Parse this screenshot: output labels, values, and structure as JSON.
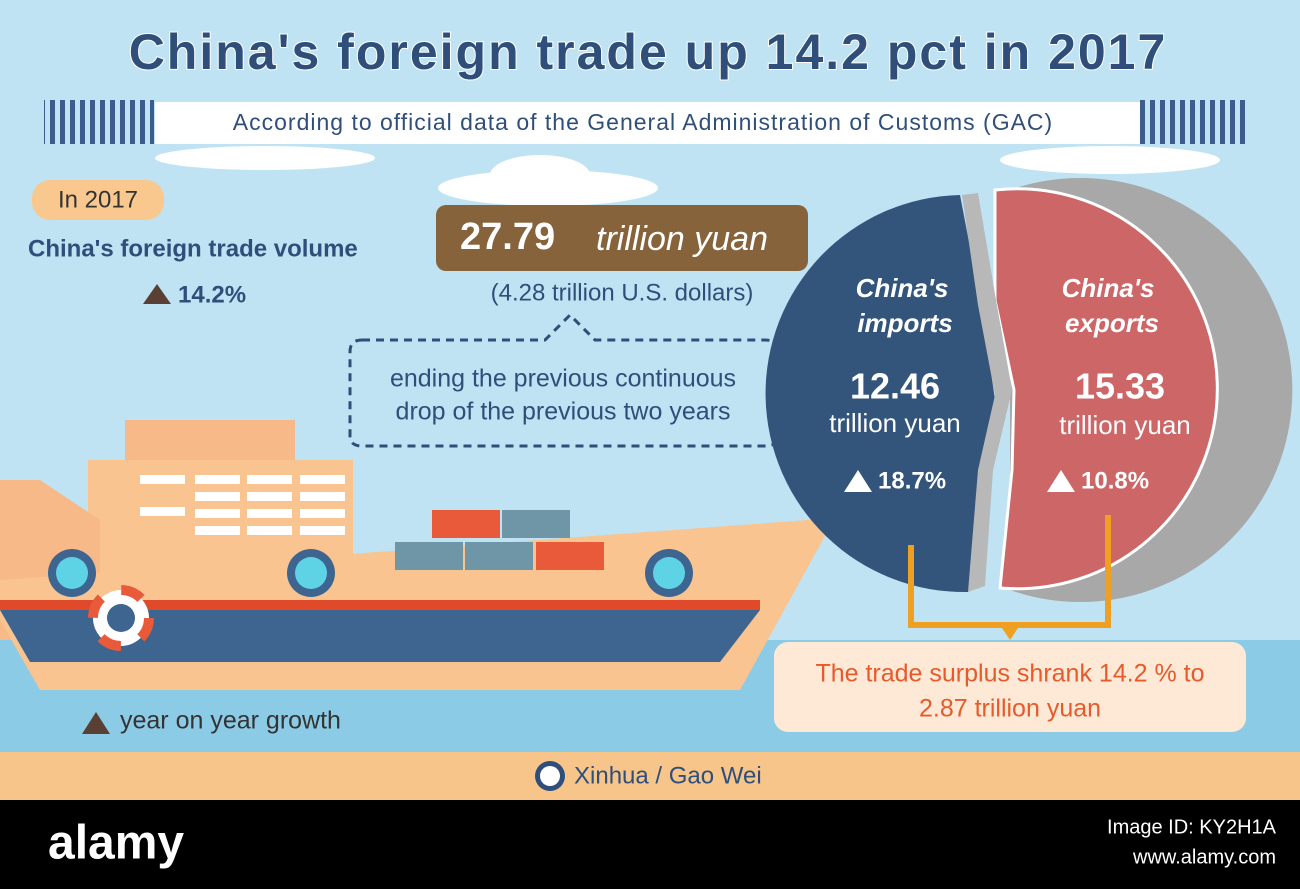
{
  "header": {
    "title": "China's foreign trade up 14.2 pct in 2017",
    "subtitle": "According to official data of the General Administration of Customs (GAC)"
  },
  "summary": {
    "year_label": "In 2017",
    "label": "China's foreign trade volume",
    "growth": "14.2%",
    "amount": "27.79",
    "amount_unit": "trillion yuan",
    "usd": "(4.28 trillion U.S. dollars)",
    "note": [
      "ending the previous continuous",
      "drop of the previous two years"
    ]
  },
  "imports": {
    "title": [
      "China's",
      "imports"
    ],
    "value": "12.46",
    "unit": "trillion yuan",
    "growth": "18.7%"
  },
  "exports": {
    "title": [
      "China's",
      "exports"
    ],
    "value": "15.33",
    "unit": "trillion yuan",
    "growth": "10.8%"
  },
  "surplus": [
    "The trade surplus shrank 14.2 % to",
    "2.87 trillion yuan"
  ],
  "legend": "year on year growth",
  "credit": "Xinhua / Gao Wei",
  "footer": {
    "brand": "alamy",
    "image_id": "Image ID: KY2H1A",
    "site": "www.alamy.com"
  }
}
